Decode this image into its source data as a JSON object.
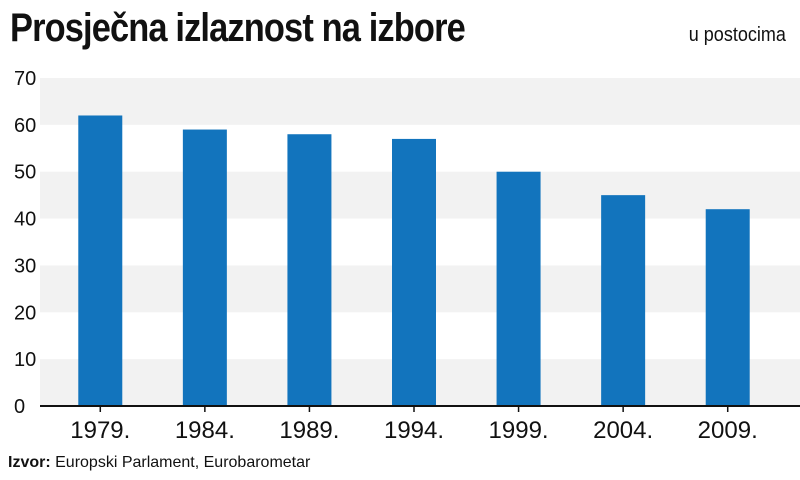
{
  "title": "Prosječna izlaznost na izbore",
  "subtitle": "u postocima",
  "source": {
    "label": "Izvor:",
    "text": "Europski Parlament, Eurobarometar"
  },
  "colors": {
    "bar": "#1274bd",
    "band": "#f2f2f2",
    "text": "#111111"
  },
  "chart_data": {
    "type": "bar",
    "categories": [
      "1979.",
      "1984.",
      "1989.",
      "1994.",
      "1999.",
      "2004.",
      "2009."
    ],
    "values": [
      62.0,
      59.0,
      58.0,
      57.0,
      50.0,
      45.0,
      42.0
    ],
    "ylim": [
      0,
      70
    ],
    "yticks": [
      "0",
      "10",
      "20",
      "30",
      "40",
      "50",
      "60",
      "70"
    ],
    "grid": "alternating bands",
    "title": "Prosječna izlaznost na izbore",
    "ylabel": "u postocima",
    "xlabel": ""
  }
}
